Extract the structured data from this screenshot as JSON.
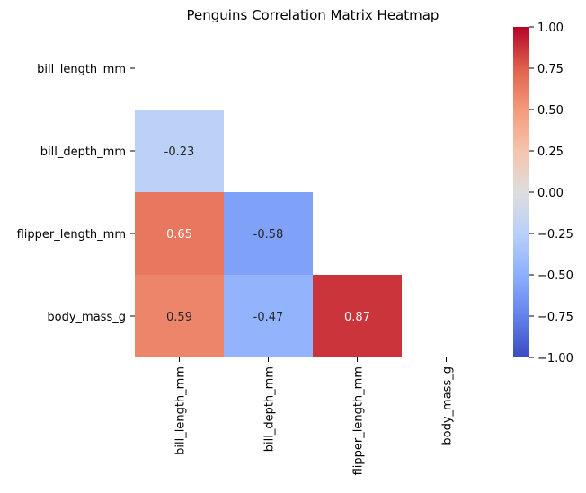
{
  "chart_data": {
    "type": "heatmap",
    "title": "Penguins Correlation Matrix Heatmap",
    "row_labels": [
      "bill_length_mm",
      "bill_depth_mm",
      "flipper_length_mm",
      "body_mass_g"
    ],
    "col_labels": [
      "bill_length_mm",
      "bill_depth_mm",
      "flipper_length_mm",
      "body_mass_g"
    ],
    "values": [
      [
        null,
        null,
        null,
        null
      ],
      [
        -0.23,
        null,
        null,
        null
      ],
      [
        0.65,
        -0.58,
        null,
        null
      ],
      [
        0.59,
        -0.47,
        0.87,
        null
      ]
    ],
    "mask": "upper-triangle-and-diagonal",
    "colormap": "coolwarm",
    "vmin": -1.0,
    "vmax": 1.0,
    "colorbar_ticks": [
      "1.00",
      "0.75",
      "0.50",
      "0.25",
      "0.00",
      "−0.25",
      "−0.50",
      "−0.75",
      "−1.00"
    ],
    "colorbar_tick_values": [
      1.0,
      0.75,
      0.5,
      0.25,
      0.0,
      -0.25,
      -0.5,
      -0.75,
      -1.0
    ],
    "annotations": true,
    "grid": false,
    "legend": "colorbar-right"
  }
}
